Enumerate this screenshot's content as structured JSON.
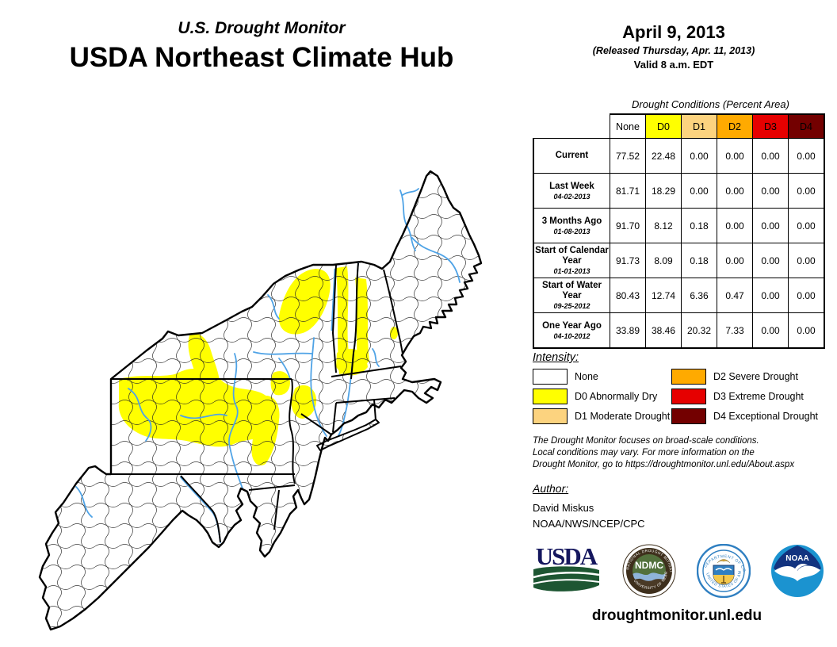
{
  "header": {
    "subtitle": "U.S. Drought Monitor",
    "title": "USDA Northeast Climate Hub"
  },
  "date_block": {
    "date": "April 9, 2013",
    "released": "(Released Thursday, Apr. 11, 2013)",
    "valid": "Valid 8 a.m. EDT"
  },
  "table": {
    "caption": "Drought Conditions (Percent Area)",
    "columns": [
      "None",
      "D0",
      "D1",
      "D2",
      "D3",
      "D4"
    ],
    "column_colors": [
      "#FFFFFF",
      "#FFFF00",
      "#FCD37F",
      "#FFAA00",
      "#E60000",
      "#730000"
    ],
    "rows": [
      {
        "label": "Current",
        "date": "",
        "values": [
          "77.52",
          "22.48",
          "0.00",
          "0.00",
          "0.00",
          "0.00"
        ]
      },
      {
        "label": "Last Week",
        "date": "04-02-2013",
        "values": [
          "81.71",
          "18.29",
          "0.00",
          "0.00",
          "0.00",
          "0.00"
        ]
      },
      {
        "label": "3 Months Ago",
        "date": "01-08-2013",
        "values": [
          "91.70",
          "8.12",
          "0.18",
          "0.00",
          "0.00",
          "0.00"
        ]
      },
      {
        "label": "Start of Calendar Year",
        "date": "01-01-2013",
        "values": [
          "91.73",
          "8.09",
          "0.18",
          "0.00",
          "0.00",
          "0.00"
        ]
      },
      {
        "label": "Start of Water Year",
        "date": "09-25-2012",
        "values": [
          "80.43",
          "12.74",
          "6.36",
          "0.47",
          "0.00",
          "0.00"
        ]
      },
      {
        "label": "One Year Ago",
        "date": "04-10-2012",
        "values": [
          "33.89",
          "38.46",
          "20.32",
          "7.33",
          "0.00",
          "0.00"
        ]
      }
    ]
  },
  "legend": {
    "heading": "Intensity:",
    "items": [
      {
        "code": "none",
        "label": "None",
        "color": "#FFFFFF"
      },
      {
        "code": "D0",
        "label": "D0 Abnormally Dry",
        "color": "#FFFF00"
      },
      {
        "code": "D1",
        "label": "D1 Moderate Drought",
        "color": "#FCD37F"
      },
      {
        "code": "D2",
        "label": "D2 Severe Drought",
        "color": "#FFAA00"
      },
      {
        "code": "D3",
        "label": "D3 Extreme Drought",
        "color": "#E60000"
      },
      {
        "code": "D4",
        "label": "D4 Exceptional Drought",
        "color": "#730000"
      }
    ]
  },
  "disclaimer": "The Drought Monitor focuses on broad-scale conditions.\nLocal conditions may vary. For more information on the\nDrought Monitor, go to https://droughtmonitor.unl.edu/About.aspx",
  "author": {
    "heading": "Author:",
    "name": "David Miskus",
    "org": "NOAA/NWS/NCEP/CPC"
  },
  "logos": {
    "usda": "USDA",
    "ndmc": "NDMC",
    "ndmc_ring_top": "NATIONAL DROUGHT MITIGATION CENTER",
    "ndmc_ring_bottom": "UNIVERSITY OF NEBRASKA",
    "doc_ring_top": "DEPARTMENT OF COMMERCE",
    "doc_ring_bottom": "UNITED STATES OF AMERICA",
    "noaa": "NOAA"
  },
  "footer_url": "droughtmonitor.unl.edu",
  "map_colors": {
    "d0_fill": "#FFFF00",
    "river": "#4FA3E6",
    "border": "#000000",
    "land": "#FFFFFF"
  },
  "chart_data": {
    "type": "table",
    "title": "Drought Conditions (Percent Area)",
    "columns": [
      "None",
      "D0",
      "D1",
      "D2",
      "D3",
      "D4"
    ],
    "rows": [
      {
        "period": "Current",
        "date": null,
        "values": [
          77.52,
          22.48,
          0.0,
          0.0,
          0.0,
          0.0
        ]
      },
      {
        "period": "Last Week",
        "date": "04-02-2013",
        "values": [
          81.71,
          18.29,
          0.0,
          0.0,
          0.0,
          0.0
        ]
      },
      {
        "period": "3 Months Ago",
        "date": "01-08-2013",
        "values": [
          91.7,
          8.12,
          0.18,
          0.0,
          0.0,
          0.0
        ]
      },
      {
        "period": "Start of Calendar Year",
        "date": "01-01-2013",
        "values": [
          91.73,
          8.09,
          0.18,
          0.0,
          0.0,
          0.0
        ]
      },
      {
        "period": "Start of Water Year",
        "date": "09-25-2012",
        "values": [
          80.43,
          12.74,
          6.36,
          0.47,
          0.0,
          0.0
        ]
      },
      {
        "period": "One Year Ago",
        "date": "04-10-2012",
        "values": [
          33.89,
          38.46,
          20.32,
          7.33,
          0.0,
          0.0
        ]
      }
    ]
  }
}
